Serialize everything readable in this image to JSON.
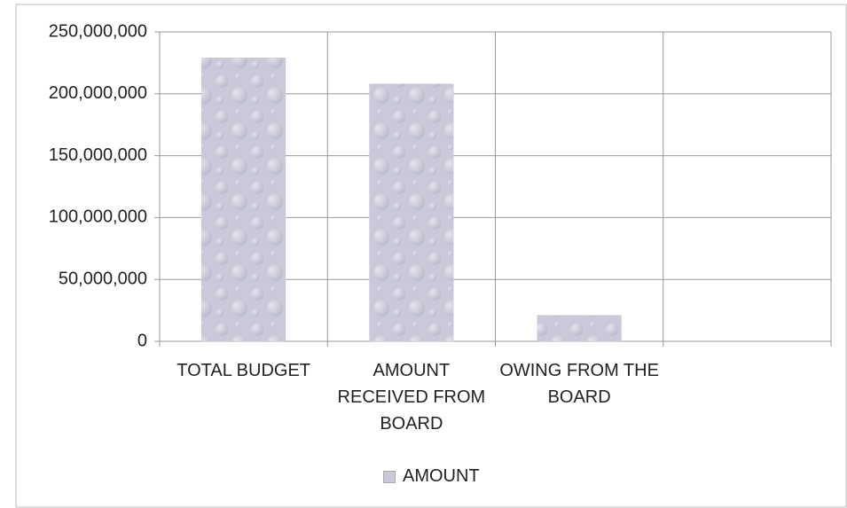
{
  "chart_data": {
    "type": "bar",
    "categories": [
      "TOTAL BUDGET",
      "AMOUNT RECEIVED FROM BOARD",
      "OWING FROM THE BOARD",
      null
    ],
    "series": [
      {
        "name": "AMOUNT",
        "color": "#c9c9d9",
        "values": [
          229000000,
          208000000,
          21000000,
          null
        ]
      }
    ],
    "ylim": [
      0,
      250000000
    ],
    "yticks": [
      0,
      {
        "value": 50000000,
        "label": "50,000,000"
      },
      {
        "value": 100000000,
        "label": "100,000,000"
      },
      {
        "value": 150000000,
        "label": "150,000,000"
      },
      {
        "value": 200000000,
        "label": "200,000,000"
      },
      {
        "value": 250000000,
        "label": "250,000,000"
      }
    ],
    "grid": true,
    "legend": "bottom"
  }
}
